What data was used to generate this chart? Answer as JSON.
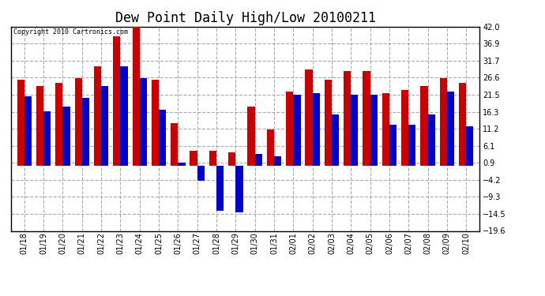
{
  "title": "Dew Point Daily High/Low 20100211",
  "copyright": "Copyright 2010 Cartronics.com",
  "dates": [
    "01/18",
    "01/19",
    "01/20",
    "01/21",
    "01/22",
    "01/23",
    "01/24",
    "01/25",
    "01/26",
    "01/27",
    "01/28",
    "01/29",
    "01/30",
    "01/31",
    "02/01",
    "02/02",
    "02/03",
    "02/04",
    "02/05",
    "02/06",
    "02/07",
    "02/08",
    "02/09",
    "02/10"
  ],
  "highs": [
    26.0,
    24.0,
    25.0,
    26.5,
    30.0,
    39.0,
    42.0,
    26.0,
    13.0,
    4.5,
    4.5,
    4.0,
    18.0,
    11.0,
    22.5,
    29.0,
    26.0,
    28.5,
    28.5,
    22.0,
    23.0,
    24.0,
    26.5,
    25.0
  ],
  "lows": [
    21.0,
    16.5,
    18.0,
    20.5,
    24.0,
    30.0,
    26.5,
    17.0,
    1.0,
    -4.5,
    -13.5,
    -14.0,
    3.5,
    3.0,
    21.5,
    22.0,
    15.5,
    21.5,
    21.5,
    12.5,
    12.5,
    15.5,
    22.5,
    12.0
  ],
  "ylim": [
    -19.6,
    42.0
  ],
  "yticks": [
    42.0,
    36.9,
    31.7,
    26.6,
    21.5,
    16.3,
    11.2,
    6.1,
    0.9,
    -4.2,
    -9.3,
    -14.5,
    -19.6
  ],
  "high_color": "#cc0000",
  "low_color": "#0000cc",
  "plot_bg": "#ffffff",
  "fig_bg": "#ffffff",
  "grid_color": "#aaaaaa",
  "title_fontsize": 12,
  "bar_width": 0.38,
  "figwidth": 6.9,
  "figheight": 3.75,
  "dpi": 100
}
